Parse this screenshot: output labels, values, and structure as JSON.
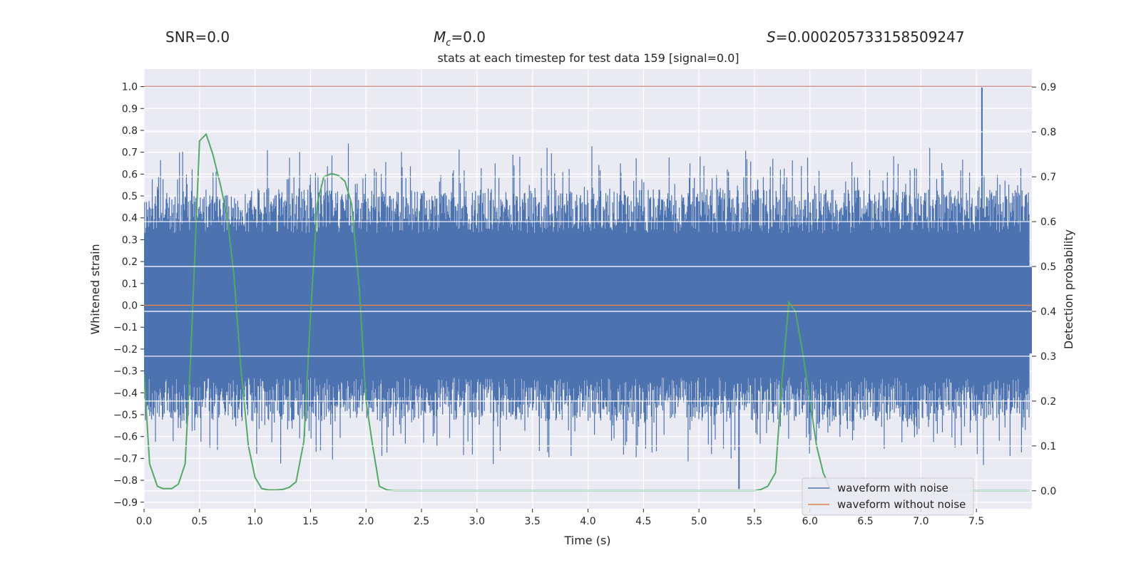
{
  "header": {
    "snr": "SNR=0.0",
    "mc_symbol": "M",
    "mc_sub": "c",
    "mc_value": "=0.0",
    "s_symbol": "S",
    "s_value": "=0.000205733158509247"
  },
  "chart_data": {
    "type": "line",
    "title": "stats at each timestep for test data 159 [signal=0.0]",
    "xlabel": "Time (s)",
    "ylabel": "Whitened strain",
    "ylabel_right": "Detection probability",
    "xlim": [
      0,
      8
    ],
    "ylim": [
      -0.93,
      1.08
    ],
    "ylim_right": [
      -0.04,
      0.94
    ],
    "xticks": [
      0.0,
      0.5,
      1.0,
      1.5,
      2.0,
      2.5,
      3.0,
      3.5,
      4.0,
      4.5,
      5.0,
      5.5,
      6.0,
      6.5,
      7.0,
      7.5
    ],
    "xtick_labels": [
      "0.0",
      "0.5",
      "1.0",
      "1.5",
      "2.0",
      "2.5",
      "3.0",
      "3.5",
      "4.0",
      "4.5",
      "5.0",
      "5.5",
      "6.0",
      "6.5",
      "7.0",
      "7.5"
    ],
    "yticks": [
      1.0,
      0.9,
      0.8,
      0.7,
      0.6,
      0.5,
      0.4,
      0.3,
      0.2,
      0.1,
      0.0,
      -0.1,
      -0.2,
      -0.3,
      -0.4,
      -0.5,
      -0.6,
      -0.7,
      -0.8,
      -0.9
    ],
    "ytick_labels": [
      "1.0",
      "0.9",
      "0.8",
      "0.7",
      "0.6",
      "0.5",
      "0.4",
      "0.3",
      "0.2",
      "0.1",
      "0.0",
      "−0.1",
      "−0.2",
      "−0.3",
      "−0.4",
      "−0.5",
      "−0.6",
      "−0.7",
      "−0.8",
      "−0.9"
    ],
    "yticks_right": [
      0.9,
      0.8,
      0.7,
      0.6,
      0.5,
      0.4,
      0.3,
      0.2,
      0.1,
      0.0
    ],
    "ytick_labels_right": [
      "0.9",
      "0.8",
      "0.7",
      "0.6",
      "0.5",
      "0.4",
      "0.3",
      "0.2",
      "0.1",
      "0.0"
    ],
    "grid": true,
    "legend_position": "lower-right",
    "threshold_line": {
      "y": 1.0,
      "color": "#C44E52"
    },
    "noise_band": {
      "typical_amplitude": 0.33,
      "peak_max": 1.0,
      "peak_max_time": 7.55,
      "peak_min": -0.84,
      "peak_min_time": 5.36
    },
    "series": [
      {
        "name": "waveform with noise",
        "color": "#4C72B0",
        "axis": "left",
        "description_values": "dense whitened-strain noise spanning roughly -0.84 to 1.0"
      },
      {
        "name": "waveform without noise",
        "color": "#DD8452",
        "axis": "left",
        "x": [
          0.0,
          8.0
        ],
        "y": [
          0.0,
          0.0
        ]
      },
      {
        "name": "Detection probability",
        "color": "#55A868",
        "axis": "right",
        "legend": false,
        "x": [
          0.0,
          0.05,
          0.12,
          0.17,
          0.25,
          0.31,
          0.37,
          0.42,
          0.5,
          0.56,
          0.62,
          0.69,
          0.75,
          0.81,
          0.87,
          0.94,
          1.0,
          1.06,
          1.12,
          1.19,
          1.25,
          1.31,
          1.37,
          1.44,
          1.5,
          1.56,
          1.62,
          1.69,
          1.75,
          1.81,
          1.87,
          1.94,
          2.0,
          2.06,
          2.12,
          2.19,
          2.25,
          2.5,
          3.0,
          3.5,
          4.0,
          4.5,
          5.0,
          5.5,
          5.56,
          5.62,
          5.69,
          5.75,
          5.81,
          5.87,
          5.94,
          6.0,
          6.06,
          6.12,
          6.19,
          6.25,
          6.5,
          7.0,
          7.5,
          7.98
        ],
        "y": [
          0.26,
          0.06,
          0.01,
          0.005,
          0.005,
          0.015,
          0.06,
          0.3,
          0.78,
          0.795,
          0.75,
          0.68,
          0.61,
          0.48,
          0.28,
          0.1,
          0.03,
          0.005,
          0.002,
          0.002,
          0.003,
          0.008,
          0.02,
          0.11,
          0.39,
          0.64,
          0.7,
          0.707,
          0.703,
          0.69,
          0.64,
          0.45,
          0.2,
          0.1,
          0.01,
          0.002,
          0.0,
          0.0,
          0.0,
          0.0,
          0.0,
          0.0,
          0.0,
          0.0,
          0.003,
          0.01,
          0.04,
          0.25,
          0.42,
          0.4,
          0.3,
          0.2,
          0.1,
          0.04,
          0.0,
          0.0,
          0.0,
          0.0,
          0.0,
          0.0
        ]
      }
    ]
  }
}
